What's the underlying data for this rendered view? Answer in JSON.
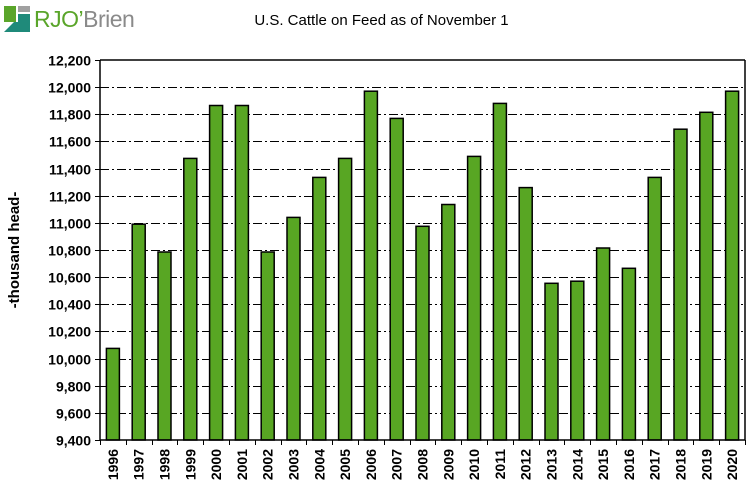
{
  "brand": {
    "name_part1": "RJO",
    "apostrophe": "’",
    "name_part2": "Brien",
    "colors": {
      "green": "#5aa52a",
      "teal": "#1f8a7a",
      "gray": "#8a8a8a"
    }
  },
  "chart_data": {
    "type": "bar",
    "title": "U.S. Cattle on Feed as of November 1",
    "xlabel": "",
    "ylabel": "-thousand head-",
    "ylim": [
      9400,
      12200
    ],
    "ytick_step": 200,
    "yticks": [
      "9,400",
      "9,600",
      "9,800",
      "10,000",
      "10,200",
      "10,400",
      "10,600",
      "10,800",
      "11,000",
      "11,200",
      "11,400",
      "11,600",
      "11,800",
      "12,000",
      "12,200"
    ],
    "grid": "horizontal dash-dot",
    "legend": "none",
    "bar_color": "#58a623",
    "categories": [
      "1996",
      "1997",
      "1998",
      "1999",
      "2000",
      "2001",
      "2002",
      "2003",
      "2004",
      "2005",
      "2006",
      "2007",
      "2008",
      "2009",
      "2010",
      "2011",
      "2012",
      "2013",
      "2014",
      "2015",
      "2016",
      "2017",
      "2018",
      "2019",
      "2020"
    ],
    "values": [
      10075,
      10990,
      10785,
      11475,
      11865,
      11865,
      10785,
      11040,
      11335,
      11475,
      11970,
      11770,
      10975,
      11135,
      11490,
      11880,
      11260,
      10555,
      10570,
      10815,
      10665,
      11335,
      11690,
      11815,
      11970
    ]
  }
}
